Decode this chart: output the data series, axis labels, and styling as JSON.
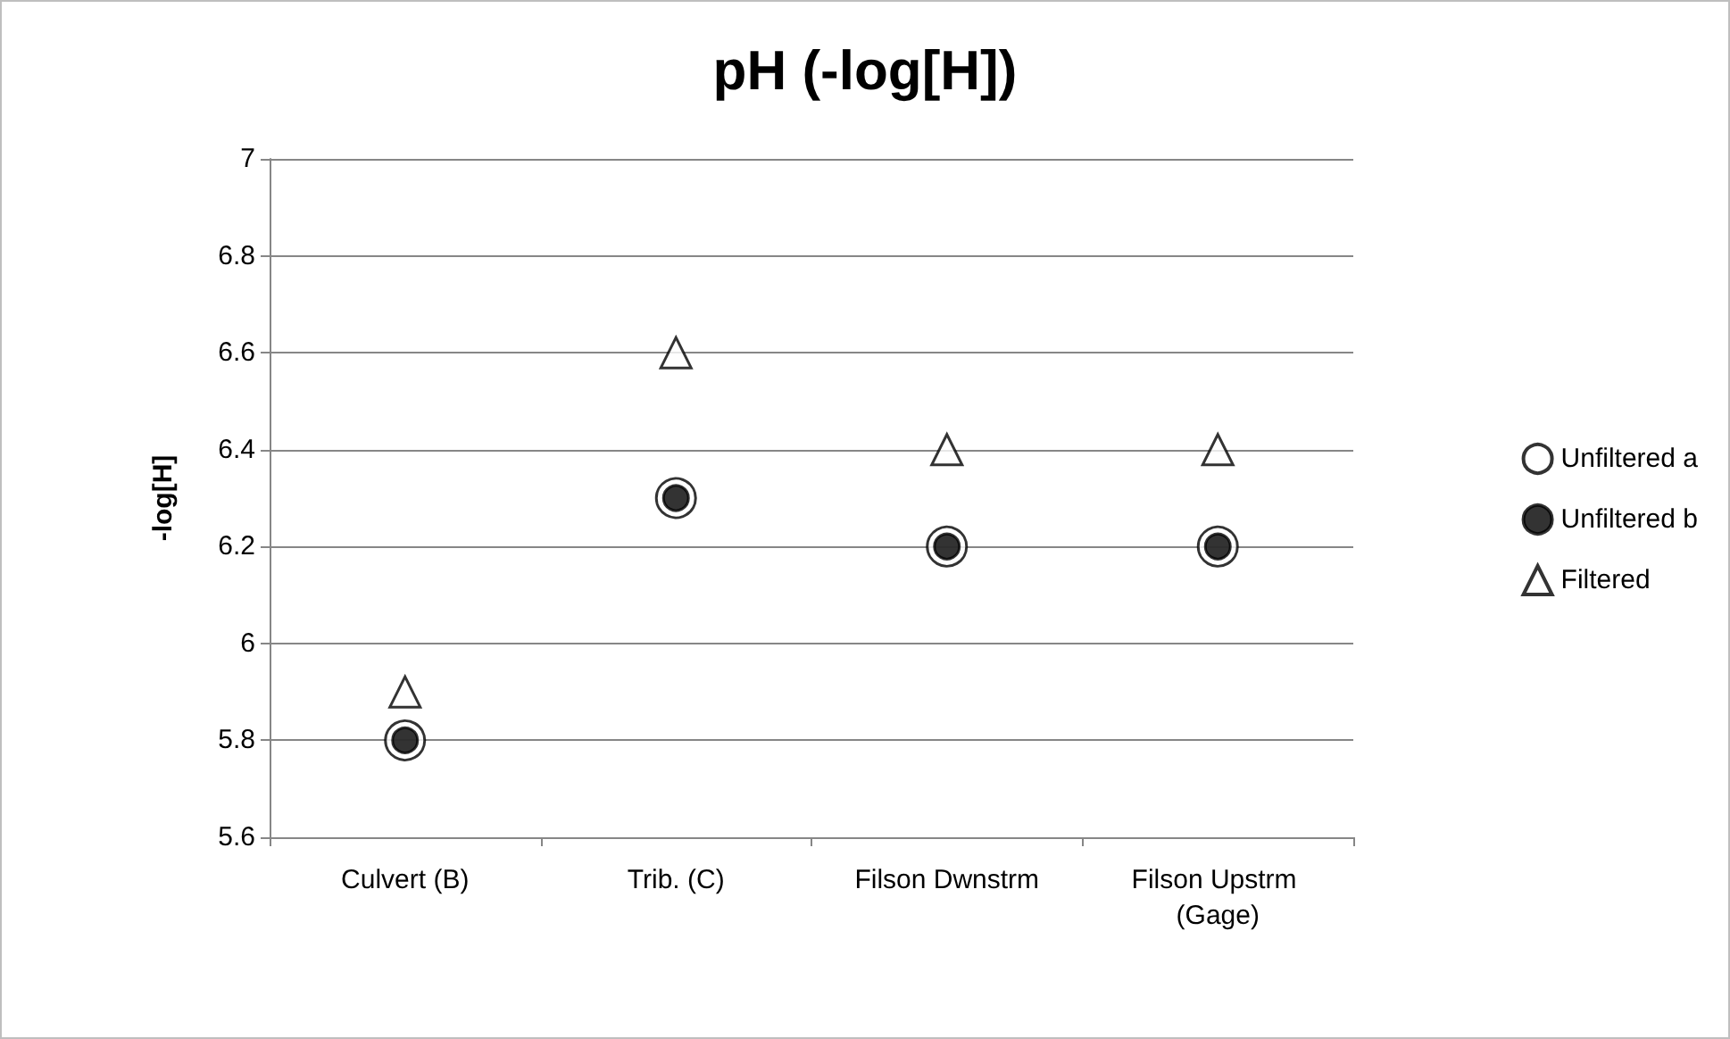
{
  "chart_data": {
    "type": "scatter",
    "title": "pH (-log[H])",
    "ylabel": "-log[H]",
    "categories": [
      "Culvert (B)",
      "Trib. (C)",
      "Filson Dwnstrm",
      "Filson Upstrm (Gage)"
    ],
    "series": [
      {
        "name": "Unfiltered a",
        "color": "#ffffff",
        "marker": "circle",
        "values": [
          5.8,
          6.3,
          6.2,
          6.2
        ]
      },
      {
        "name": "Unfiltered b",
        "color": "#000000",
        "marker": "circle",
        "values": [
          5.8,
          6.3,
          6.2,
          6.2
        ]
      },
      {
        "name": "Filtered",
        "color": "#ffffff",
        "marker": "triangle",
        "values": [
          5.9,
          6.6,
          6.4,
          6.4
        ]
      }
    ],
    "ylim": [
      5.6,
      7
    ],
    "yticks": [
      5.6,
      5.8,
      6,
      6.2,
      6.4,
      6.6,
      6.8,
      7
    ],
    "grid": "y",
    "legend": "right"
  }
}
